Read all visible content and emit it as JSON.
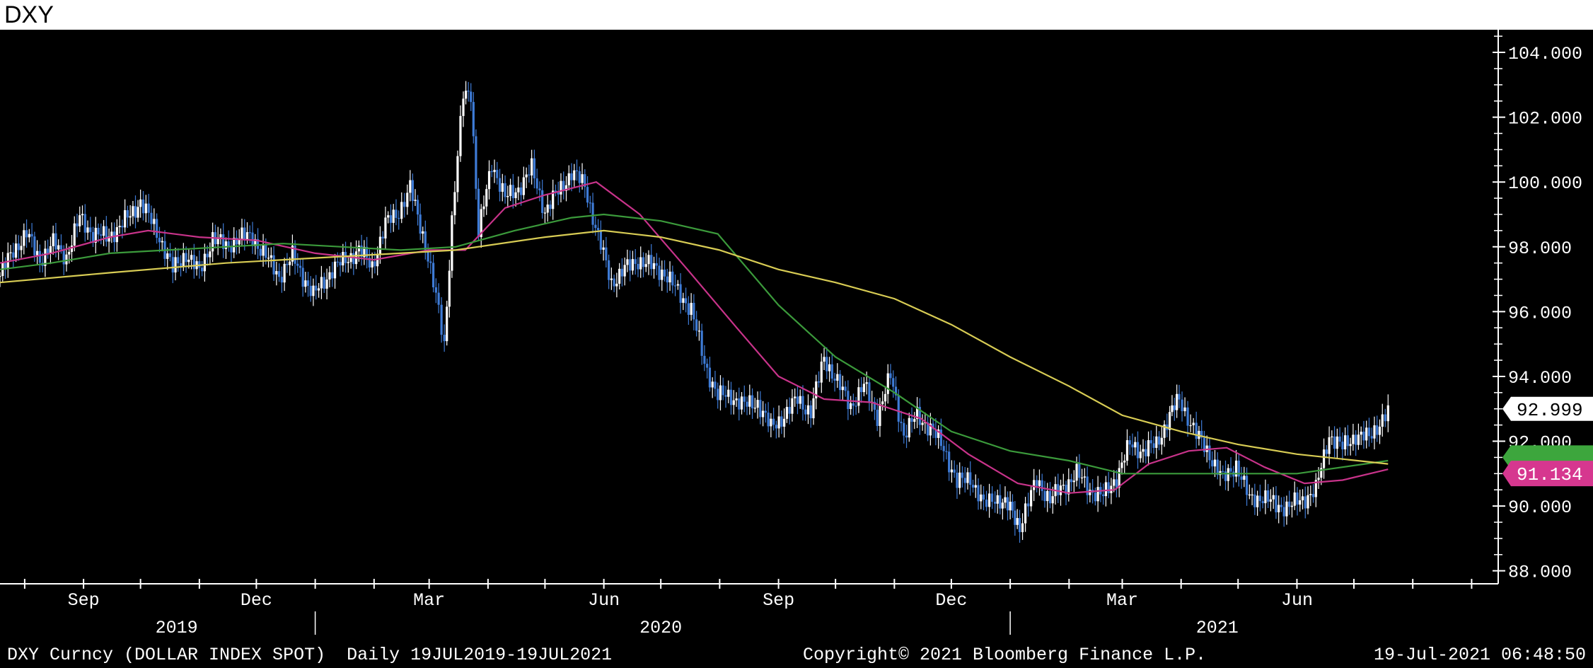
{
  "title": "DXY",
  "footer": {
    "left": "DXY Curncy (DOLLAR INDEX SPOT)  Daily 19JUL2019-19JUL2021",
    "center": "Copyright© 2021 Bloomberg Finance L.P.",
    "right": "19-Jul-2021 06:48:50"
  },
  "colors": {
    "background": "#000000",
    "up_candle": "#ffffff",
    "down_candle": "#3e7bd6",
    "ma_short": "#c8338a",
    "ma_mid": "#3b9a3b",
    "ma_long": "#d8cc54",
    "last_price_box": "#ffffff",
    "ma_short_box": "#d6378f",
    "ma_mid_box": "#3da63d"
  },
  "chart_data": {
    "type": "line",
    "subtype": "candlestick with moving averages",
    "y_axis_side": "right",
    "ylim": [
      87.6,
      104.7
    ],
    "y_ticks": [
      "104.000",
      "102.000",
      "100.000",
      "98.000",
      "96.000",
      "94.000",
      "92.000",
      "90.000",
      "88.000"
    ],
    "y_tick_values": [
      104,
      102,
      100,
      98,
      96,
      94,
      92,
      90,
      88
    ],
    "x_month_ticks": [
      {
        "label": "Sep",
        "date": "2019-09-01"
      },
      {
        "label": "Dec",
        "date": "2019-12-01"
      },
      {
        "label": "Mar",
        "date": "2020-03-01"
      },
      {
        "label": "Jun",
        "date": "2020-06-01"
      },
      {
        "label": "Sep",
        "date": "2020-09-01"
      },
      {
        "label": "Dec",
        "date": "2020-12-01"
      },
      {
        "label": "Mar",
        "date": "2021-03-01"
      },
      {
        "label": "Jun",
        "date": "2021-06-01"
      }
    ],
    "x_year_labels": [
      {
        "label": "2019",
        "date": "2019-10-20"
      },
      {
        "label": "2020",
        "date": "2020-07-01"
      },
      {
        "label": "2021",
        "date": "2021-04-20"
      }
    ],
    "year_dividers": [
      "2020-01-01",
      "2021-01-01"
    ],
    "x_range": [
      "2019-07-19",
      "2021-09-15"
    ],
    "price_series": {
      "name": "DXY Curncy",
      "points": [
        [
          "2019-07-19",
          97.1
        ],
        [
          "2019-07-26",
          97.9
        ],
        [
          "2019-08-02",
          98.4
        ],
        [
          "2019-08-09",
          97.6
        ],
        [
          "2019-08-16",
          98.1
        ],
        [
          "2019-08-23",
          97.7
        ],
        [
          "2019-08-30",
          98.9
        ],
        [
          "2019-09-06",
          98.4
        ],
        [
          "2019-09-13",
          98.3
        ],
        [
          "2019-09-20",
          98.6
        ],
        [
          "2019-09-27",
          99.1
        ],
        [
          "2019-10-01",
          99.4
        ],
        [
          "2019-10-11",
          98.3
        ],
        [
          "2019-10-18",
          97.3
        ],
        [
          "2019-10-25",
          97.8
        ],
        [
          "2019-11-01",
          97.2
        ],
        [
          "2019-11-08",
          98.3
        ],
        [
          "2019-11-15",
          98.0
        ],
        [
          "2019-11-22",
          98.3
        ],
        [
          "2019-11-29",
          98.3
        ],
        [
          "2019-12-06",
          97.7
        ],
        [
          "2019-12-13",
          97.1
        ],
        [
          "2019-12-20",
          97.7
        ],
        [
          "2019-12-31",
          96.5
        ],
        [
          "2020-01-10",
          97.3
        ],
        [
          "2020-01-17",
          97.6
        ],
        [
          "2020-01-24",
          97.9
        ],
        [
          "2020-01-31",
          97.4
        ],
        [
          "2020-02-07",
          98.7
        ],
        [
          "2020-02-14",
          99.1
        ],
        [
          "2020-02-20",
          99.8
        ],
        [
          "2020-02-28",
          98.1
        ],
        [
          "2020-03-06",
          96.0
        ],
        [
          "2020-03-09",
          95.0
        ],
        [
          "2020-03-13",
          98.8
        ],
        [
          "2020-03-19",
          102.7
        ],
        [
          "2020-03-23",
          102.8
        ],
        [
          "2020-03-27",
          98.4
        ],
        [
          "2020-04-03",
          100.6
        ],
        [
          "2020-04-10",
          99.5
        ],
        [
          "2020-04-17",
          99.8
        ],
        [
          "2020-04-24",
          100.4
        ],
        [
          "2020-05-01",
          99.1
        ],
        [
          "2020-05-08",
          99.7
        ],
        [
          "2020-05-15",
          100.3
        ],
        [
          "2020-05-22",
          99.9
        ],
        [
          "2020-05-29",
          98.3
        ],
        [
          "2020-06-05",
          96.9
        ],
        [
          "2020-06-12",
          97.3
        ],
        [
          "2020-06-19",
          97.6
        ],
        [
          "2020-06-26",
          97.4
        ],
        [
          "2020-07-03",
          97.2
        ],
        [
          "2020-07-10",
          96.6
        ],
        [
          "2020-07-17",
          96.1
        ],
        [
          "2020-07-24",
          94.4
        ],
        [
          "2020-07-31",
          93.4
        ],
        [
          "2020-08-07",
          93.4
        ],
        [
          "2020-08-14",
          93.1
        ],
        [
          "2020-08-21",
          93.2
        ],
        [
          "2020-08-28",
          92.4
        ],
        [
          "2020-09-04",
          92.8
        ],
        [
          "2020-09-11",
          93.3
        ],
        [
          "2020-09-18",
          92.9
        ],
        [
          "2020-09-25",
          94.6
        ],
        [
          "2020-10-02",
          93.8
        ],
        [
          "2020-10-09",
          93.1
        ],
        [
          "2020-10-16",
          93.7
        ],
        [
          "2020-10-23",
          92.8
        ],
        [
          "2020-10-30",
          94.0
        ],
        [
          "2020-11-06",
          92.2
        ],
        [
          "2020-11-13",
          92.8
        ],
        [
          "2020-11-20",
          92.4
        ],
        [
          "2020-11-27",
          91.8
        ],
        [
          "2020-12-04",
          90.7
        ],
        [
          "2020-12-11",
          90.9
        ],
        [
          "2020-12-18",
          90.0
        ],
        [
          "2020-12-24",
          90.3
        ],
        [
          "2021-01-01",
          89.9
        ],
        [
          "2021-01-06",
          89.4
        ],
        [
          "2021-01-15",
          90.8
        ],
        [
          "2021-01-22",
          90.2
        ],
        [
          "2021-01-29",
          90.6
        ],
        [
          "2021-02-05",
          91.0
        ],
        [
          "2021-02-12",
          90.5
        ],
        [
          "2021-02-19",
          90.3
        ],
        [
          "2021-02-26",
          90.9
        ],
        [
          "2021-03-05",
          91.9
        ],
        [
          "2021-03-12",
          91.7
        ],
        [
          "2021-03-19",
          91.9
        ],
        [
          "2021-03-26",
          92.8
        ],
        [
          "2021-03-31",
          93.3
        ],
        [
          "2021-04-09",
          92.2
        ],
        [
          "2021-04-16",
          91.6
        ],
        [
          "2021-04-23",
          90.8
        ],
        [
          "2021-04-30",
          91.3
        ],
        [
          "2021-05-07",
          90.2
        ],
        [
          "2021-05-14",
          90.3
        ],
        [
          "2021-05-21",
          90.0
        ],
        [
          "2021-05-28",
          90.0
        ],
        [
          "2021-06-04",
          90.2
        ],
        [
          "2021-06-11",
          90.5
        ],
        [
          "2021-06-18",
          92.2
        ],
        [
          "2021-06-25",
          91.8
        ],
        [
          "2021-07-02",
          92.2
        ],
        [
          "2021-07-09",
          92.1
        ],
        [
          "2021-07-16",
          92.7
        ],
        [
          "2021-07-19",
          92.9
        ]
      ]
    },
    "moving_averages": [
      {
        "key": "ma_short",
        "points": [
          [
            "2019-07-19",
            97.5
          ],
          [
            "2019-08-15",
            97.8
          ],
          [
            "2019-09-15",
            98.3
          ],
          [
            "2019-10-05",
            98.5
          ],
          [
            "2019-11-01",
            98.3
          ],
          [
            "2019-12-01",
            98.2
          ],
          [
            "2020-01-01",
            97.8
          ],
          [
            "2020-02-01",
            97.6
          ],
          [
            "2020-03-01",
            97.9
          ],
          [
            "2020-03-20",
            97.9
          ],
          [
            "2020-04-10",
            99.2
          ],
          [
            "2020-05-01",
            99.6
          ],
          [
            "2020-05-28",
            100.0
          ],
          [
            "2020-06-20",
            99.0
          ],
          [
            "2020-07-15",
            97.3
          ],
          [
            "2020-08-10",
            95.5
          ],
          [
            "2020-09-01",
            94.0
          ],
          [
            "2020-09-25",
            93.3
          ],
          [
            "2020-10-20",
            93.2
          ],
          [
            "2020-11-15",
            92.7
          ],
          [
            "2020-12-10",
            91.6
          ],
          [
            "2021-01-05",
            90.7
          ],
          [
            "2021-02-01",
            90.4
          ],
          [
            "2021-02-25",
            90.5
          ],
          [
            "2021-03-15",
            91.3
          ],
          [
            "2021-04-05",
            91.7
          ],
          [
            "2021-04-25",
            91.8
          ],
          [
            "2021-05-15",
            91.2
          ],
          [
            "2021-06-05",
            90.7
          ],
          [
            "2021-06-25",
            90.8
          ],
          [
            "2021-07-19",
            91.134
          ]
        ]
      },
      {
        "key": "ma_mid",
        "points": [
          [
            "2019-07-19",
            97.3
          ],
          [
            "2019-08-15",
            97.5
          ],
          [
            "2019-09-15",
            97.8
          ],
          [
            "2019-10-15",
            97.9
          ],
          [
            "2019-11-15",
            98.0
          ],
          [
            "2019-12-15",
            98.1
          ],
          [
            "2020-01-15",
            98.0
          ],
          [
            "2020-02-15",
            97.9
          ],
          [
            "2020-03-15",
            98.0
          ],
          [
            "2020-04-15",
            98.5
          ],
          [
            "2020-05-15",
            98.9
          ],
          [
            "2020-06-01",
            99.0
          ],
          [
            "2020-07-01",
            98.8
          ],
          [
            "2020-07-31",
            98.4
          ],
          [
            "2020-09-01",
            96.2
          ],
          [
            "2020-10-01",
            94.6
          ],
          [
            "2020-11-01",
            93.5
          ],
          [
            "2020-12-01",
            92.3
          ],
          [
            "2021-01-01",
            91.7
          ],
          [
            "2021-02-01",
            91.4
          ],
          [
            "2021-03-01",
            91.0
          ],
          [
            "2021-04-01",
            91.0
          ],
          [
            "2021-05-01",
            91.0
          ],
          [
            "2021-06-01",
            91.0
          ],
          [
            "2021-07-19",
            91.4
          ]
        ]
      },
      {
        "key": "ma_long",
        "points": [
          [
            "2019-07-19",
            96.9
          ],
          [
            "2019-09-15",
            97.2
          ],
          [
            "2019-11-15",
            97.5
          ],
          [
            "2020-01-15",
            97.7
          ],
          [
            "2020-03-15",
            97.9
          ],
          [
            "2020-05-01",
            98.3
          ],
          [
            "2020-06-01",
            98.5
          ],
          [
            "2020-07-01",
            98.3
          ],
          [
            "2020-08-01",
            97.9
          ],
          [
            "2020-09-01",
            97.3
          ],
          [
            "2020-10-01",
            96.9
          ],
          [
            "2020-11-01",
            96.4
          ],
          [
            "2020-12-01",
            95.6
          ],
          [
            "2021-01-01",
            94.6
          ],
          [
            "2021-02-01",
            93.7
          ],
          [
            "2021-03-01",
            92.8
          ],
          [
            "2021-04-01",
            92.3
          ],
          [
            "2021-05-01",
            91.9
          ],
          [
            "2021-06-01",
            91.6
          ],
          [
            "2021-07-19",
            91.3
          ]
        ]
      }
    ],
    "last_price_label": "92.999",
    "last_price_value": 92.999,
    "ma_short_label": "91.134",
    "ma_short_value": 91.134,
    "ma_mid_value": 91.5
  }
}
